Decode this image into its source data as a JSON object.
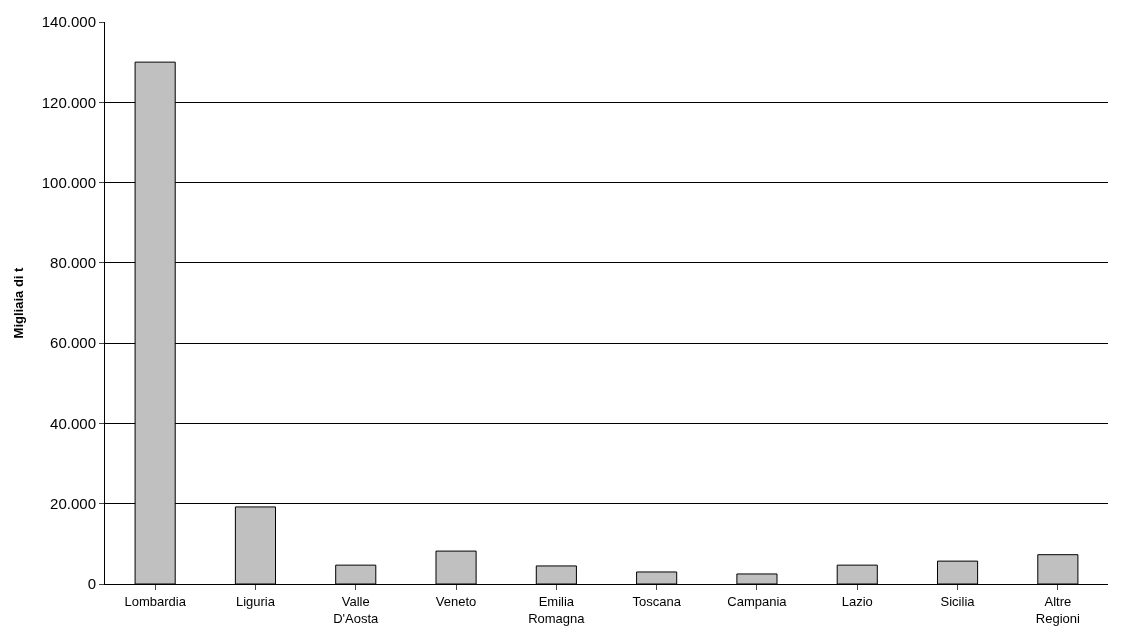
{
  "chart_data": {
    "type": "bar",
    "ylabel": "Migliaia di t",
    "categories": [
      "Lombardia",
      "Liguria",
      "Valle\nD'Aosta",
      "Veneto",
      "Emilia\nRomagna",
      "Toscana",
      "Campania",
      "Lazio",
      "Sicilia",
      "Altre\nRegioni"
    ],
    "values": [
      130000,
      19200,
      4700,
      8200,
      4500,
      3000,
      2500,
      4700,
      5700,
      7300
    ],
    "color": "#c0c0c0",
    "ylim": [
      0,
      140000
    ],
    "yticks": [
      {
        "value": 0,
        "label": "0"
      },
      {
        "value": 20000,
        "label": "20.000"
      },
      {
        "value": 40000,
        "label": "40.000"
      },
      {
        "value": 60000,
        "label": "60.000"
      },
      {
        "value": 80000,
        "label": "80.000"
      },
      {
        "value": 100000,
        "label": "100.000"
      },
      {
        "value": 120000,
        "label": "120.000"
      },
      {
        "value": 140000,
        "label": "140.000"
      }
    ],
    "grid": "y"
  }
}
